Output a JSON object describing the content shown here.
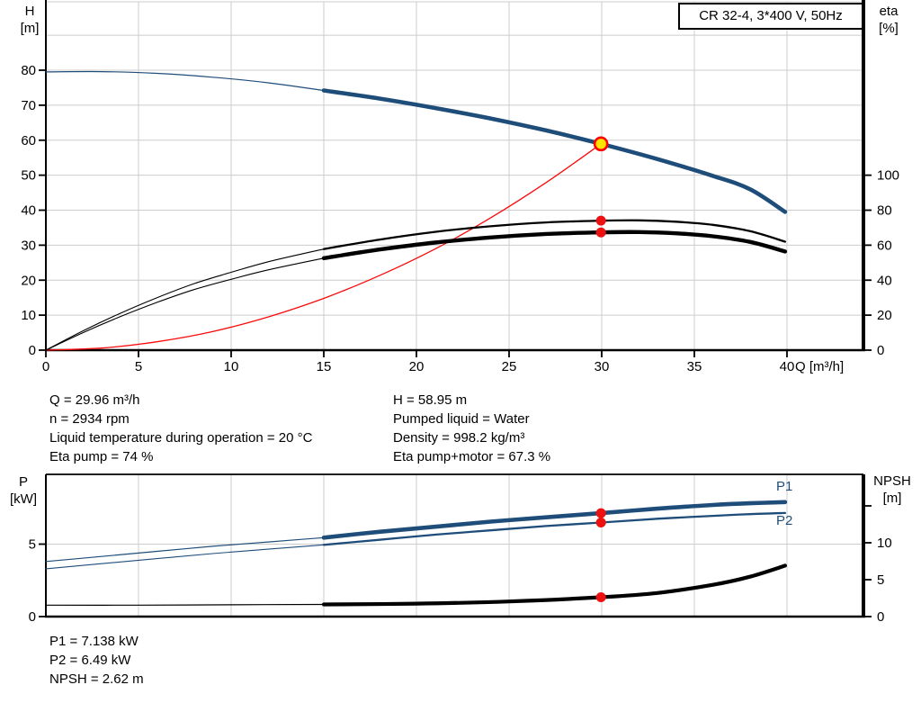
{
  "colors": {
    "curve_blue": "#1e4d7a",
    "curve_black": "#000000",
    "curve_red": "#fa0a0a",
    "dot_red": "#ee1111",
    "duty_fill": "#ffe400",
    "duty_stroke": "#ff0000",
    "grid": "#cccccc",
    "axis": "#000000"
  },
  "info_block": {
    "left": [
      "Q = 29.96 m³/h",
      "n = 2934 rpm",
      "Liquid temperature during operation = 20 °C",
      "Eta pump = 74 %"
    ],
    "right": [
      "H = 58.95 m",
      "Pumped liquid = Water",
      "Density = 998.2 kg/m³",
      "Eta pump+motor = 67.3 %"
    ]
  },
  "bottom_info": [
    "P1 = 7.138 kW",
    "P2 = 6.49 kW",
    "NPSH = 2.62 m"
  ],
  "chart_data": [
    {
      "type": "line",
      "title": "CR 32-4, 3*400 V, 50Hz",
      "xlabel": "Q [m³/h]",
      "ylabel_left": "H [m]",
      "ylabel_left_lines": [
        "H",
        "[m]"
      ],
      "ylabel_right": "eta [%]",
      "ylabel_right_lines": [
        "eta",
        "[%]"
      ],
      "x_range": [
        0,
        44
      ],
      "y_left_range": [
        0,
        99.5
      ],
      "y_right_range": [
        0,
        199
      ],
      "x_ticks": [
        0,
        5,
        10,
        15,
        20,
        25,
        30,
        35,
        40
      ],
      "y_left_ticks": [
        0,
        10,
        20,
        30,
        40,
        50,
        60,
        70,
        80
      ],
      "y_right_ticks": [
        0,
        20,
        40,
        60,
        80,
        100
      ],
      "y_grid": [
        10,
        20,
        30,
        40,
        50,
        60,
        70,
        80,
        90
      ],
      "grid": true,
      "series": [
        {
          "id": "system-curve",
          "label": "system curve",
          "axis": "H",
          "color": "#fa0a0a",
          "width_thin": 1.3,
          "width_thick": 1.3,
          "emphasis_from": null,
          "points": [
            [
              0,
              0
            ],
            [
              3,
              0.6
            ],
            [
              6,
              2.4
            ],
            [
              9,
              5.3
            ],
            [
              12,
              9.5
            ],
            [
              15,
              14.8
            ],
            [
              18,
              21.3
            ],
            [
              21,
              28.9
            ],
            [
              24,
              37.8
            ],
            [
              27,
              47.9
            ],
            [
              29.96,
              58.95
            ]
          ]
        },
        {
          "id": "eta-pump-curve",
          "label": "eta pump",
          "axis": "eta",
          "color": "#000000",
          "width_thin": 1.1,
          "width_thick": 2.3,
          "emphasis_from": 15,
          "points": [
            [
              0,
              0
            ],
            [
              2,
              11
            ],
            [
              4,
              21
            ],
            [
              6,
              30
            ],
            [
              8,
              38
            ],
            [
              10,
              44.5
            ],
            [
              12,
              50.5
            ],
            [
              15,
              57.8
            ],
            [
              18,
              63.2
            ],
            [
              21,
              67.6
            ],
            [
              24,
              70.8
            ],
            [
              27,
              73
            ],
            [
              29.96,
              74
            ],
            [
              32,
              74.2
            ],
            [
              34,
              73.4
            ],
            [
              36,
              71.6
            ],
            [
              38,
              68
            ],
            [
              39.9,
              62
            ]
          ]
        },
        {
          "id": "eta-pump-motor-curve",
          "label": "eta pump+motor",
          "axis": "eta",
          "color": "#000000",
          "width_thin": 1.1,
          "width_thick": 4.4,
          "emphasis_from": 15,
          "points": [
            [
              0,
              0
            ],
            [
              2,
              10
            ],
            [
              4,
              19.1
            ],
            [
              6,
              27.3
            ],
            [
              8,
              34.6
            ],
            [
              10,
              40.5
            ],
            [
              12,
              45.9
            ],
            [
              15,
              52.6
            ],
            [
              18,
              57.5
            ],
            [
              21,
              61.5
            ],
            [
              24,
              64.4
            ],
            [
              27,
              66.4
            ],
            [
              29.96,
              67.3
            ],
            [
              32,
              67.5
            ],
            [
              34,
              66.8
            ],
            [
              36,
              65.1
            ],
            [
              38,
              61.9
            ],
            [
              39.9,
              56.4
            ]
          ]
        },
        {
          "id": "head-curve",
          "label": "H",
          "axis": "H",
          "color": "#1e4d7a",
          "width_thin": 1.2,
          "width_thick": 4.6,
          "emphasis_from": 15,
          "points": [
            [
              0,
              79.5
            ],
            [
              3,
              79.6
            ],
            [
              6,
              79.1
            ],
            [
              9,
              78
            ],
            [
              12,
              76.4
            ],
            [
              15,
              74.2
            ],
            [
              18,
              71.9
            ],
            [
              21,
              69.2
            ],
            [
              24,
              66.2
            ],
            [
              27,
              62.8
            ],
            [
              29.96,
              58.95
            ],
            [
              33,
              54.6
            ],
            [
              36,
              49.8
            ],
            [
              38,
              46
            ],
            [
              39.9,
              39.5
            ]
          ]
        }
      ],
      "markers": [
        {
          "id": "duty-point",
          "style": "duty",
          "q": 29.96,
          "value": 58.95,
          "axis": "H"
        },
        {
          "id": "eta-pump-point",
          "style": "dot",
          "q": 29.96,
          "value": 74,
          "axis": "eta"
        },
        {
          "id": "eta-pump-motor-point",
          "style": "dot",
          "q": 29.96,
          "value": 67.3,
          "axis": "eta"
        }
      ]
    },
    {
      "type": "line",
      "title": "",
      "xlabel": "",
      "ylabel_left": "P [kW]",
      "ylabel_left_lines": [
        "P",
        "[kW]"
      ],
      "ylabel_right": "NPSH [m]",
      "ylabel_right_lines": [
        "NPSH",
        "[m]"
      ],
      "x_range": [
        0,
        44
      ],
      "y_left_range": [
        0,
        9.8
      ],
      "y_right_range": [
        0,
        19.3
      ],
      "x_ticks": [
        5,
        10,
        15,
        20,
        25,
        30,
        35,
        40
      ],
      "y_left_ticks": [
        0,
        5
      ],
      "y_right_ticks": [
        0,
        5,
        10
      ],
      "y_right_ticks_unlabeled": [
        15
      ],
      "y_grid_left": [
        5
      ],
      "grid": true,
      "series": [
        {
          "id": "npsh-curve",
          "label": "NPSH",
          "axis": "NPSH",
          "color": "#000000",
          "width_thin": 1.2,
          "width_thick": 4.2,
          "emphasis_from": 15,
          "points": [
            [
              0,
              1.55
            ],
            [
              5,
              1.55
            ],
            [
              10,
              1.6
            ],
            [
              15,
              1.65
            ],
            [
              20,
              1.75
            ],
            [
              25,
              2.05
            ],
            [
              29.96,
              2.62
            ],
            [
              33,
              3.2
            ],
            [
              36,
              4.3
            ],
            [
              38,
              5.4
            ],
            [
              39.9,
              6.9
            ]
          ]
        },
        {
          "id": "p1-curve",
          "label": "P1",
          "axis": "P",
          "color": "#1e4d7a",
          "width_thin": 1.2,
          "width_thick": 4.6,
          "emphasis_from": 15,
          "points": [
            [
              0,
              3.8
            ],
            [
              3,
              4.15
            ],
            [
              6,
              4.5
            ],
            [
              9,
              4.85
            ],
            [
              12,
              5.15
            ],
            [
              15,
              5.45
            ],
            [
              18,
              5.85
            ],
            [
              21,
              6.2
            ],
            [
              24,
              6.55
            ],
            [
              27,
              6.85
            ],
            [
              29.96,
              7.138
            ],
            [
              33,
              7.45
            ],
            [
              36,
              7.7
            ],
            [
              38,
              7.82
            ],
            [
              39.9,
              7.9
            ]
          ]
        },
        {
          "id": "p2-curve",
          "label": "P2",
          "axis": "P",
          "color": "#1e4d7a",
          "width_thin": 1.1,
          "width_thick": 2.3,
          "emphasis_from": 15,
          "points": [
            [
              0,
              3.3
            ],
            [
              3,
              3.65
            ],
            [
              6,
              4.0
            ],
            [
              9,
              4.35
            ],
            [
              12,
              4.65
            ],
            [
              15,
              4.95
            ],
            [
              18,
              5.3
            ],
            [
              21,
              5.65
            ],
            [
              24,
              5.95
            ],
            [
              27,
              6.25
            ],
            [
              29.96,
              6.49
            ],
            [
              33,
              6.75
            ],
            [
              36,
              6.95
            ],
            [
              38,
              7.07
            ],
            [
              39.9,
              7.15
            ]
          ]
        }
      ],
      "markers": [
        {
          "id": "p1-point",
          "style": "dot",
          "q": 29.96,
          "value": 7.138,
          "axis": "P"
        },
        {
          "id": "p2-point",
          "style": "dot",
          "q": 29.96,
          "value": 6.49,
          "axis": "P"
        },
        {
          "id": "npsh-point",
          "style": "dot",
          "q": 29.96,
          "value": 2.62,
          "axis": "NPSH"
        }
      ]
    }
  ]
}
